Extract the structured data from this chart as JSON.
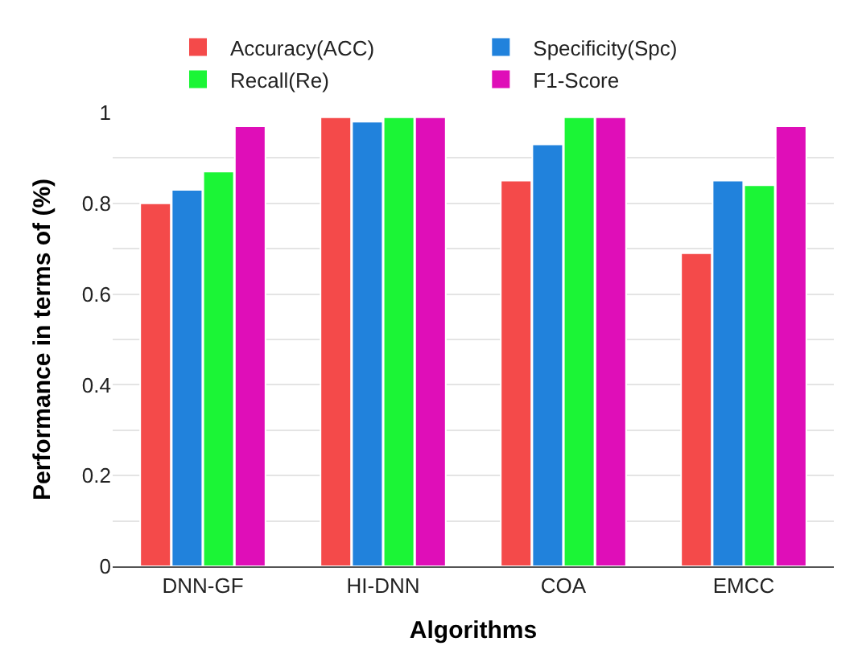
{
  "chart_data": {
    "type": "bar",
    "xlabel": "Algorithms",
    "ylabel": "Performance in terms of (%)",
    "categories": [
      "DNN-GF",
      "HI-DNN",
      "COA",
      "EMCC"
    ],
    "series": [
      {
        "name": "Accuracy(ACC)",
        "color": "#f44a4a",
        "values": [
          0.8,
          0.99,
          0.85,
          0.69
        ]
      },
      {
        "name": "Specificity(Spc)",
        "color": "#2182dc",
        "values": [
          0.83,
          0.98,
          0.93,
          0.85
        ]
      },
      {
        "name": "Recall(Re)",
        "color": "#1bf536",
        "values": [
          0.87,
          0.99,
          0.99,
          0.84
        ]
      },
      {
        "name": "F1-Score",
        "color": "#df0eb8",
        "values": [
          0.97,
          0.99,
          0.99,
          0.97
        ]
      }
    ],
    "ylim": [
      0,
      1
    ],
    "yticks": [
      0,
      {
        "value": 0.1,
        "label": null
      },
      0.2,
      {
        "value": 0.3,
        "label": null
      },
      0.4,
      {
        "value": 0.5,
        "label": null
      },
      0.6,
      {
        "value": 0.7,
        "label": null
      },
      0.8,
      {
        "value": 0.9,
        "label": null
      },
      1
    ],
    "grid": "y",
    "legend": "top"
  }
}
